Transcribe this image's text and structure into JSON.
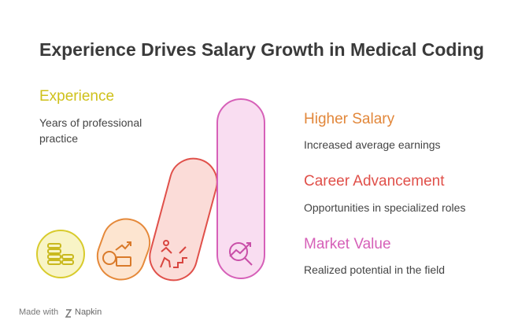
{
  "title": "Experience Drives Salary Growth in Medical Coding",
  "items": [
    {
      "label": "Experience",
      "description": "Years of professional practice"
    },
    {
      "label": "Higher Salary",
      "description": "Increased average earnings"
    },
    {
      "label": "Career Advancement",
      "description": "Opportunities in specialized roles"
    },
    {
      "label": "Market Value",
      "description": "Realized potential in the field"
    }
  ],
  "footer": {
    "prefix": "Made with",
    "brand": "Napkin"
  }
}
